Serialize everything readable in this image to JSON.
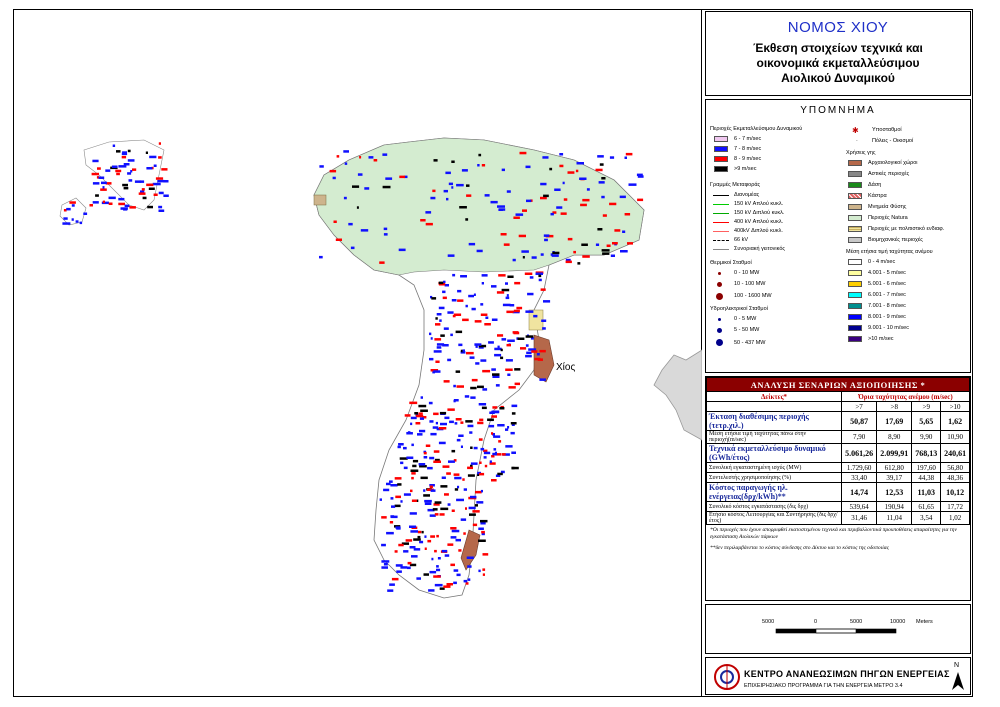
{
  "map": {
    "place_label": "Χίος"
  },
  "title": {
    "prefecture": "ΝΟΜΟΣ ΧΙΟΥ",
    "subtitle_1": "Έκθεση στοιχείων τεχνικά και",
    "subtitle_2": "οικονομικά εκμεταλλεύσιμου",
    "subtitle_3": "Αιολικού Δυναμικού"
  },
  "legend": {
    "heading": "ΥΠΟΜΝΗΜΑ",
    "areas_title": "Περιοχές Εκμεταλλεύσιμου Δυναμικού",
    "areas": [
      {
        "label": "6 - 7 m/sec",
        "color": "#f0c8f0"
      },
      {
        "label": "7 - 8 m/sec",
        "color": "#1010ff"
      },
      {
        "label": "8 - 9 m/sec",
        "color": "#ff0000"
      },
      {
        "label": ">9 m/sec",
        "color": "#000000"
      }
    ],
    "lines_title": "Γραμμές Μεταφοράς",
    "lines": [
      {
        "label": "Διανομέας",
        "color": "#000000",
        "style": "solid"
      },
      {
        "label": "150 kV Απλού κυκλ.",
        "color": "#00cc00",
        "style": "solid"
      },
      {
        "label": "150 kV Διπλού κυκλ.",
        "color": "#00aa00",
        "style": "solid"
      },
      {
        "label": "400 kV Απλού κυκλ.",
        "color": "#ff0000",
        "style": "solid"
      },
      {
        "label": "400kV Διπλού κυκλ.",
        "color": "#ff6060",
        "style": "solid"
      },
      {
        "label": "66 kV",
        "color": "#000000",
        "style": "dashed"
      },
      {
        "label": "Συνοριακή γειτονικός",
        "color": "#888888",
        "style": "solid"
      }
    ],
    "thermal_title": "Θερμικοί Σταθμοί",
    "thermal": [
      {
        "label": "0 - 10 MW"
      },
      {
        "label": "10 - 100 MW"
      },
      {
        "label": "100 - 1600 MW"
      }
    ],
    "hydro_title": "Υδροηλεκτρικοί Σταθμοί",
    "hydro": [
      {
        "label": "0 - 5 MW"
      },
      {
        "label": "5 - 50 MW"
      },
      {
        "label": "50 - 437 MW"
      }
    ],
    "substations": "Υποσταθμοί",
    "cities": "Πόλεις - Οικισμοί",
    "landuse_title": "Χρήσεις γης",
    "landuse": [
      {
        "label": "Αρχαιολογικοί χώροι",
        "color": "#b5684a"
      },
      {
        "label": "Αστικές περιοχές",
        "color": "#888888"
      },
      {
        "label": "Δάση",
        "color": "#1a8a1a"
      },
      {
        "label": "Κάστρα",
        "color": "#e06060"
      },
      {
        "label": "Μνημεία Φύσης",
        "color": "#cdb48c"
      },
      {
        "label": "Περιοχές Natura",
        "color": "#d4ecd0"
      },
      {
        "label": "Περιοχές με πολιτιστικό ενδιαφ.",
        "color": "#f0e4a0"
      },
      {
        "label": "Βιομηχανικές περιοχές",
        "color": "#c8c8c8"
      }
    ],
    "wind_title": "Μέση ετήσια τιμή ταχύτητας ανέμου",
    "wind": [
      {
        "label": "0 - 4 m/sec",
        "color": "#ffffff"
      },
      {
        "label": "4.001 - 5 m/sec",
        "color": "#ffffa0"
      },
      {
        "label": "5.001 - 6 m/sec",
        "color": "#ffd000"
      },
      {
        "label": "6.001 - 7 m/sec",
        "color": "#00ffff"
      },
      {
        "label": "7.001 - 8 m/sec",
        "color": "#009090"
      },
      {
        "label": "8.001 - 9 m/sec",
        "color": "#0000ff"
      },
      {
        "label": "9.001 - 10 m/sec",
        "color": "#000090"
      },
      {
        "label": ">10 m/sec",
        "color": "#3a0080"
      }
    ]
  },
  "table": {
    "header": "ΑΝΑΛΥΣΗ ΣΕΝΑΡΙΩΝ ΑΞΙΟΠΟΙΗΣΗΣ *",
    "col_indicators": "Δείκτες*",
    "col_speed": "Όρια ταχύτητας ανέμου (m/sec)",
    "thresholds": [
      ">7",
      ">8",
      ">9",
      ">10"
    ],
    "rows": [
      {
        "label": "Έκταση διαθέσιμης περιοχής (τετρ.χιλ.)",
        "values": [
          "50,87",
          "17,69",
          "5,65",
          "1,62"
        ],
        "style": "bold"
      },
      {
        "label": "Μέση ετήσια τιμή ταχύτητας πάνω στην περιοχή(m/sec)",
        "values": [
          "7,90",
          "8,90",
          "9,90",
          "10,90"
        ],
        "style": "small"
      },
      {
        "label": "Τεχνικά εκμεταλλεύσιμο δυναμικό (GWh/έτος)",
        "values": [
          "5.061,26",
          "2.099,91",
          "768,13",
          "240,61"
        ],
        "style": "bold"
      },
      {
        "label": "Συνολική εγκαταστημένη ισχύς (MW)",
        "values": [
          "1.729,60",
          "612,80",
          "197,60",
          "56,80"
        ],
        "style": "small"
      },
      {
        "label": "Συντελεστής χρησιμοποίησης (%)",
        "values": [
          "33,40",
          "39,17",
          "44,38",
          "48,36"
        ],
        "style": "small"
      },
      {
        "label": "Κόστος παραγωγής ηλ. ενέργειας(δρχ/kWh)**",
        "values": [
          "14,74",
          "12,53",
          "11,03",
          "10,12"
        ],
        "style": "bold"
      },
      {
        "label": "Συνολικό κόστος εγκατάστασης (δις δρχ)",
        "values": [
          "539,64",
          "190,94",
          "61,65",
          "17,72"
        ],
        "style": "small"
      },
      {
        "label": "Ετήσιο κόστος Λειτουργίας και Συντήρησης (δις δρχ/έτος)",
        "values": [
          "31,46",
          "11,04",
          "3,54",
          "1,02"
        ],
        "style": "small"
      }
    ],
    "note_1": "*Οι περιοχές που έχουν απορριφθεί εκατοστεμένου τεχνικά και περιβαλλοντικά προυποθέσεις απαραίτητες για την εγκατάσταση Αιολικών πάρκων",
    "note_2": "**δεν περιλαμβάνεται το κόστος σύνδεσης στο Δίκτυο και το κόστος της οδοποιίας"
  },
  "scale": {
    "ticks": [
      "5000",
      "0",
      "5000",
      "10000"
    ],
    "unit": "Meters"
  },
  "footer": {
    "organization": "ΚΕΝΤΡΟ ΑΝΑΝΕΩΣΙΜΩΝ ΠΗΓΩΝ ΕΝΕΡΓΕΙΑΣ",
    "program": "ΕΠΙΧΕΙΡΗΣΙΑΚΟ ΠΡΟΓΡΑΜΜΑ ΓΙΑ ΤΗΝ ΕΝΕΡΓΕΙΑ ΜΕΤΡΟ 3.4",
    "north": "N"
  }
}
